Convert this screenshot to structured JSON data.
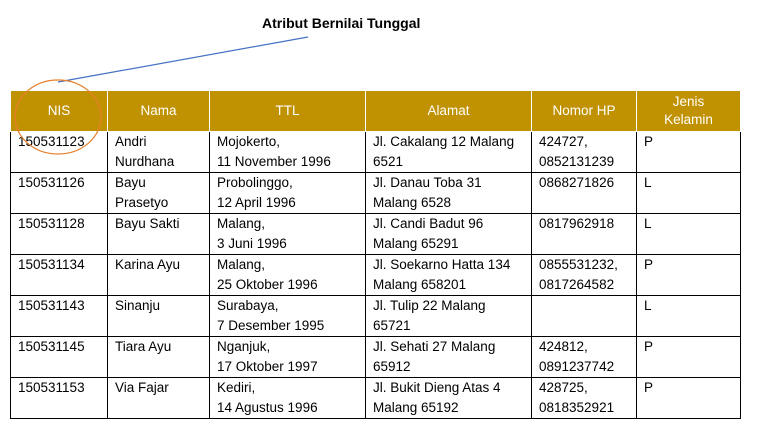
{
  "annotation": {
    "title": "Atribut Bernilai Tunggal",
    "accent_color": "#e87f2a",
    "line_color": "#4472c4"
  },
  "table": {
    "header_color": "#c09100",
    "columns": [
      "NIS",
      "Nama",
      "TTL",
      "Alamat",
      "Nomor HP",
      "Jenis\nKelamin"
    ],
    "rows": [
      [
        "150531123",
        "Andri\nNurdhana",
        "Mojokerto,\n11 November 1996",
        "Jl. Cakalang 12 Malang\n6521",
        "424727,\n0852131239",
        "P"
      ],
      [
        "150531126",
        "Bayu\nPrasetyo",
        "Probolinggo,\n12 April 1996",
        "Jl. Danau Toba 31\nMalang 6528",
        "0868271826",
        "L"
      ],
      [
        "150531128",
        "Bayu Sakti",
        "Malang,\n3 Juni 1996",
        "Jl. Candi Badut 96\nMalang 65291",
        "0817962918",
        "L"
      ],
      [
        "150531134",
        "Karina Ayu",
        "Malang,\n25 Oktober 1996",
        "Jl. Soekarno Hatta 134\nMalang 658201",
        "0855531232,\n0817264582",
        "P"
      ],
      [
        "150531143",
        "Sinanju",
        "Surabaya,\n7 Desember 1995",
        "Jl. Tulip 22 Malang\n65721",
        "",
        "L"
      ],
      [
        "150531145",
        "Tiara Ayu",
        "Nganjuk,\n17 Oktober 1997",
        "Jl. Sehati 27 Malang\n65912",
        "424812,\n0891237742",
        "P"
      ],
      [
        "150531153",
        "Via Fajar",
        "Kediri,\n14 Agustus 1996",
        "Jl. Bukit Dieng Atas 4\nMalang 65192",
        "428725,\n0818352921",
        "P"
      ]
    ]
  }
}
